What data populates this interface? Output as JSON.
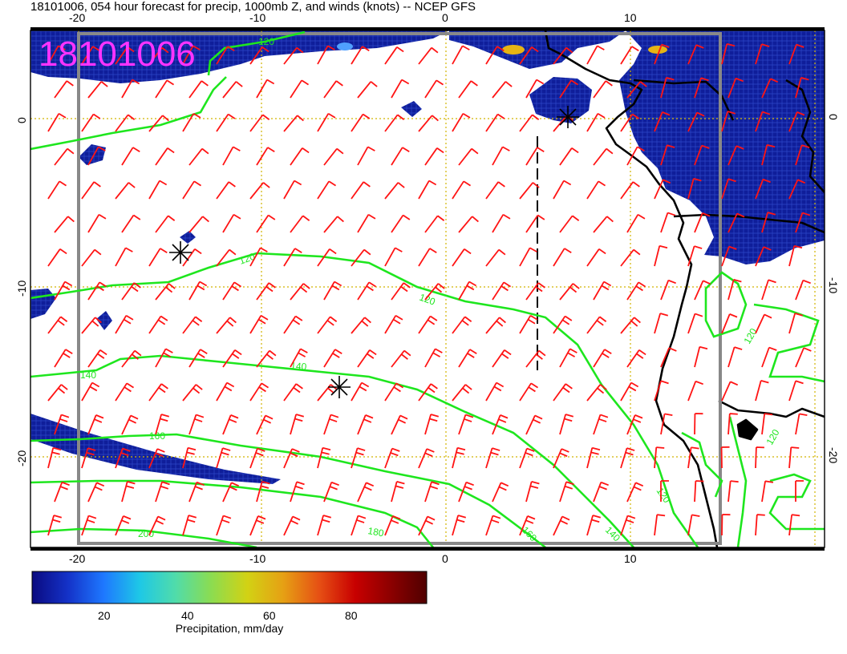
{
  "header": {
    "title": "18101006, 054 hour forecast for precip, 1000mb Z, and winds (knots) -- NCEP GFS",
    "stamp": "18101006"
  },
  "axes": {
    "lon_ticks": [
      "-20",
      "-10",
      "0",
      "10"
    ],
    "lat_ticks": [
      "0",
      "-10",
      "-20"
    ]
  },
  "contours": {
    "labels": [
      "120",
      "120",
      "120",
      "120",
      "120",
      "140",
      "140",
      "140",
      "160",
      "160",
      "180",
      "200",
      "120"
    ]
  },
  "colorbar": {
    "ticks": [
      "20",
      "40",
      "60",
      "80"
    ],
    "label": "Precipitation, mm/day",
    "colors": [
      "#0a0a80",
      "#1432c8",
      "#1e78ff",
      "#1ec8e6",
      "#50dcaa",
      "#8cdc50",
      "#d2d214",
      "#e6a014",
      "#e65014",
      "#c80000",
      "#8c0000",
      "#500000"
    ]
  },
  "colors": {
    "precip_dark": "#0a1478",
    "precip_mid": "#1e50d2",
    "contour": "#1ee61e",
    "barb": "#ff1414",
    "grid": "#d2b400",
    "frame": "#888888"
  }
}
